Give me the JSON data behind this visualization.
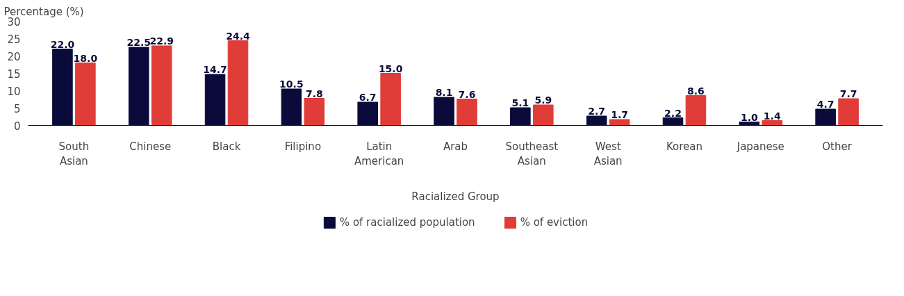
{
  "chart_data": {
    "type": "bar",
    "ylabel": "Percentage (%)",
    "xlabel": "Racialized Group",
    "categories": [
      "South Asian",
      "Chinese",
      "Black",
      "Filipino",
      "Latin American",
      "Arab",
      "Southeast Asian",
      "West Asian",
      "Korean",
      "Japanese",
      "Other"
    ],
    "series": [
      {
        "name": "% of racialized population",
        "color": "#0b0b3b",
        "values": [
          22.0,
          22.5,
          14.7,
          10.5,
          6.7,
          8.1,
          5.1,
          2.7,
          2.2,
          1.0,
          4.7
        ],
        "value_labels": [
          "22.0",
          "22.5",
          "14.7",
          "10.5",
          "6.7",
          "8.1",
          "5.1",
          "2.7",
          "2.2",
          "1.0",
          "4.7"
        ]
      },
      {
        "name": "% of eviction",
        "color": "#e03c38",
        "values": [
          18.0,
          22.9,
          24.4,
          7.8,
          15.0,
          7.6,
          5.9,
          1.7,
          8.6,
          1.4,
          7.7
        ],
        "value_labels": [
          "18.0",
          "22.9",
          "24.4",
          "7.8",
          "15.0",
          "7.6",
          "5.9",
          "1.7",
          "8.6",
          "1.4",
          "7.7"
        ]
      }
    ],
    "ylim": [
      0,
      30
    ],
    "yticks": [
      0,
      5,
      10,
      15,
      20,
      25,
      30
    ],
    "grid": false,
    "legend": "bottom"
  }
}
